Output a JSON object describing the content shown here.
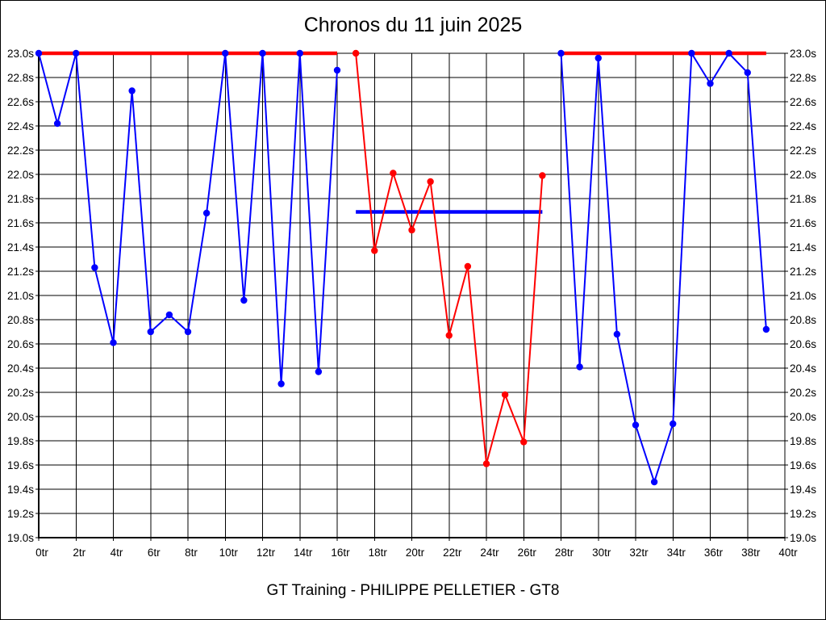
{
  "chart_data": {
    "type": "line",
    "title": "Chronos du 11 juin 2025",
    "footer": "GT Training - PHILIPPE PELLETIER - GT8",
    "grid": true,
    "legend": "none",
    "x_axis": {
      "unit": "tr",
      "min": 0,
      "max": 40,
      "tick_step": 2,
      "tick_labels": [
        "0tr",
        "2tr",
        "4tr",
        "6tr",
        "8tr",
        "10tr",
        "12tr",
        "14tr",
        "16tr",
        "18tr",
        "20tr",
        "22tr",
        "24tr",
        "26tr",
        "28tr",
        "30tr",
        "32tr",
        "34tr",
        "36tr",
        "38tr",
        "40tr"
      ]
    },
    "y_axis": {
      "unit": "s",
      "min": 19.0,
      "max": 23.0,
      "tick_step": 0.2,
      "labels_on_both_sides": true,
      "tick_labels_top_to_bottom": [
        "23.0s",
        "22.8s",
        "22.6s",
        "22.4s",
        "22.2s",
        "22.0s",
        "21.8s",
        "21.6s",
        "21.4s",
        "21.2s",
        "21.0s",
        "20.8s",
        "20.6s",
        "20.4s",
        "20.2s",
        "20.0s",
        "19.8s",
        "19.6s",
        "19.4s",
        "19.2s",
        "19.0s"
      ]
    },
    "colors": {
      "blue": "#0000ff",
      "red": "#ff0000",
      "grid": "#000000"
    },
    "series": [
      {
        "name": "lap-times-blue-stint-1",
        "color": "#0000ff",
        "x": [
          0,
          1,
          2,
          3,
          4,
          5,
          6,
          7,
          8,
          9,
          10,
          11,
          12,
          13,
          14,
          15,
          16
        ],
        "y": [
          23.0,
          22.42,
          23.0,
          21.23,
          20.61,
          22.69,
          20.7,
          20.84,
          20.7,
          21.68,
          23.0,
          20.96,
          23.0,
          20.27,
          23.0,
          20.37,
          22.86
        ]
      },
      {
        "name": "lap-times-red-stint",
        "color": "#ff0000",
        "x": [
          17,
          18,
          19,
          20,
          21,
          22,
          23,
          24,
          25,
          26,
          27
        ],
        "y": [
          23.0,
          21.37,
          22.01,
          21.54,
          21.94,
          20.67,
          21.24,
          19.61,
          20.18,
          19.79,
          21.99
        ]
      },
      {
        "name": "lap-times-blue-stint-2",
        "color": "#0000ff",
        "x": [
          28,
          29,
          30,
          31,
          32,
          33,
          34,
          35,
          36,
          37,
          38,
          39
        ],
        "y": [
          23.0,
          20.41,
          22.96,
          20.68,
          19.93,
          19.46,
          19.94,
          23.0,
          22.75,
          23.0,
          22.84,
          20.72
        ]
      }
    ],
    "reference_lines": [
      {
        "name": "red-cap-line-left",
        "color": "#ff0000",
        "value": 23.0,
        "x_start": 0,
        "x_end": 16
      },
      {
        "name": "red-cap-line-right",
        "color": "#ff0000",
        "value": 23.0,
        "x_start": 28,
        "x_end": 39
      },
      {
        "name": "blue-mean-line",
        "color": "#0000ff",
        "value": 21.69,
        "x_start": 17,
        "x_end": 27
      }
    ]
  }
}
